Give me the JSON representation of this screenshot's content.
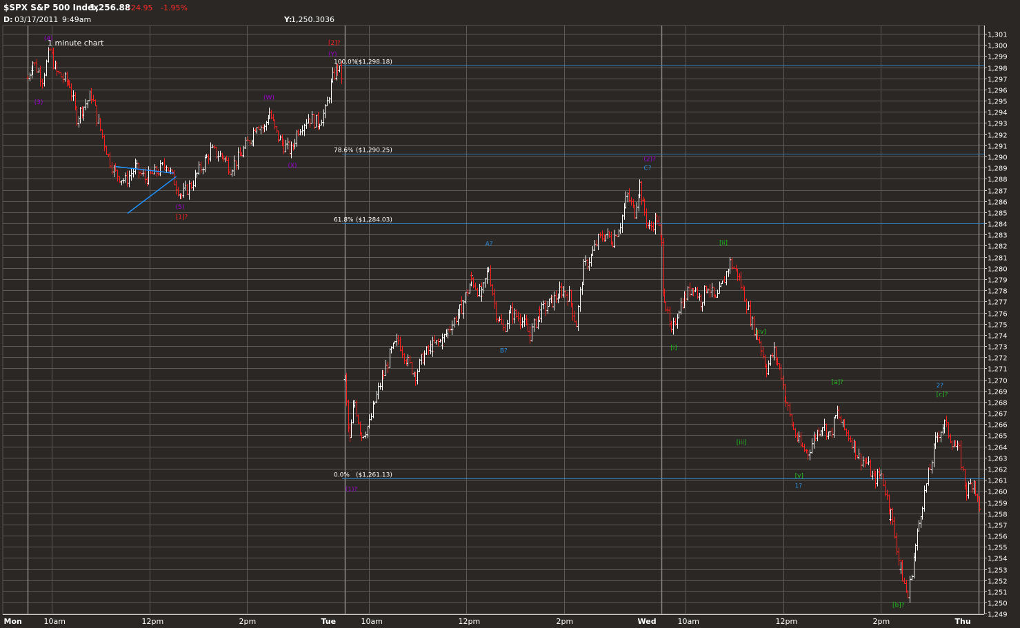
{
  "header": {
    "symbol": "$SPX S&P 500 Index",
    "last": "1,256.88",
    "change": "-24.95",
    "change_pct": "-1.95%",
    "date_label": "D:",
    "date_value": "03/17/2011",
    "time_value": "9:49am",
    "y_label": "Y:",
    "y_value": "1,250.3036"
  },
  "colors": {
    "background": "#2a2724",
    "plot_background": "#2a2724",
    "grid": "#5e5a56",
    "up_bar": "#ffffff",
    "down_bar": "#ff2020",
    "fib_line": "#2f7fbf",
    "trendline": "#1e90ff",
    "wave_purple": "#a000d8",
    "wave_red": "#ff2020",
    "wave_green": "#20c020",
    "wave_blue": "#2f8fe0"
  },
  "chart_data": {
    "type": "ohlc",
    "title": "$SPX S&P 500 Index",
    "note": "1 minute chart",
    "ylim": [
      1249,
      1301
    ],
    "y_ticks": [
      "1,301",
      "1,300",
      "1,299",
      "1,298",
      "1,297",
      "1,296",
      "1,295",
      "1,294",
      "1,293",
      "1,292",
      "1,291",
      "1,290",
      "1,289",
      "1,288",
      "1,287",
      "1,286",
      "1,285",
      "1,284",
      "1,283",
      "1,282",
      "1,281",
      "1,280",
      "1,279",
      "1,278",
      "1,277",
      "1,276",
      "1,275",
      "1,274",
      "1,273",
      "1,272",
      "1,271",
      "1,270",
      "1,269",
      "1,268",
      "1,267",
      "1,266",
      "1,265",
      "1,264",
      "1,263",
      "1,262",
      "1,261",
      "1,260",
      "1,259",
      "1,258",
      "1,257",
      "1,256",
      "1,255",
      "1,254",
      "1,253",
      "1,252",
      "1,251",
      "1,250",
      "1,249"
    ],
    "x_ticks": [
      {
        "label": "Mon",
        "t": 0,
        "bold": true
      },
      {
        "label": "10am",
        "t": 0.5
      },
      {
        "label": "12pm",
        "t": 2.5
      },
      {
        "label": "2pm",
        "t": 4.5
      },
      {
        "label": "Tue",
        "t": 6.5,
        "bold": true
      },
      {
        "label": "10am",
        "t": 7
      },
      {
        "label": "12pm",
        "t": 9
      },
      {
        "label": "2pm",
        "t": 11
      },
      {
        "label": "Wed",
        "t": 13,
        "bold": true
      },
      {
        "label": "10am",
        "t": 13.5
      },
      {
        "label": "12pm",
        "t": 15.5
      },
      {
        "label": "2pm",
        "t": 17.5
      },
      {
        "label": "Thu",
        "t": 19.5,
        "bold": true
      }
    ],
    "day_dividers": [
      6.5,
      13
    ],
    "fib_levels": [
      {
        "label": "100.0%",
        "price_label": "($1,298.18)",
        "value": 1298.18
      },
      {
        "label": "78.6%",
        "price_label": "($1,290.25)",
        "value": 1290.25
      },
      {
        "label": "61.8%",
        "price_label": "($1,284.03)",
        "value": 1284.03
      },
      {
        "label": "0.0%",
        "price_label": "($1,261.13)",
        "value": 1261.13
      }
    ],
    "close_path": [
      [
        0.0,
        1297.0
      ],
      [
        0.1,
        1298.5
      ],
      [
        0.3,
        1297.0
      ],
      [
        0.45,
        1299.5
      ],
      [
        0.6,
        1297.5
      ],
      [
        0.85,
        1296.5
      ],
      [
        1.0,
        1293.5
      ],
      [
        1.15,
        1294.5
      ],
      [
        1.3,
        1295.5
      ],
      [
        1.45,
        1293.0
      ],
      [
        1.65,
        1290.0
      ],
      [
        1.8,
        1288.5
      ],
      [
        2.0,
        1287.8
      ],
      [
        2.2,
        1289.0
      ],
      [
        2.4,
        1288.0
      ],
      [
        2.6,
        1288.5
      ],
      [
        2.85,
        1289.3
      ],
      [
        3.0,
        1287.8
      ],
      [
        3.15,
        1286.5
      ],
      [
        3.35,
        1287.5
      ],
      [
        3.55,
        1289.0
      ],
      [
        3.75,
        1290.5
      ],
      [
        4.0,
        1290.0
      ],
      [
        4.15,
        1289.0
      ],
      [
        4.35,
        1290.0
      ],
      [
        4.55,
        1291.5
      ],
      [
        4.7,
        1293.0
      ],
      [
        4.85,
        1292.5
      ],
      [
        4.95,
        1294.0
      ],
      [
        5.1,
        1292.0
      ],
      [
        5.25,
        1291.0
      ],
      [
        5.4,
        1290.5
      ],
      [
        5.55,
        1292.5
      ],
      [
        5.75,
        1293.5
      ],
      [
        5.95,
        1293.0
      ],
      [
        6.1,
        1294.0
      ],
      [
        6.25,
        1297.0
      ],
      [
        6.35,
        1298.0
      ],
      [
        6.45,
        1297.0
      ],
      [
        6.5,
        1270.0
      ],
      [
        6.6,
        1264.5
      ],
      [
        6.7,
        1268.0
      ],
      [
        6.85,
        1265.0
      ],
      [
        7.0,
        1266.0
      ],
      [
        7.15,
        1268.5
      ],
      [
        7.3,
        1270.5
      ],
      [
        7.45,
        1272.5
      ],
      [
        7.6,
        1273.5
      ],
      [
        7.8,
        1271.5
      ],
      [
        7.95,
        1270.5
      ],
      [
        8.1,
        1272.0
      ],
      [
        8.3,
        1273.0
      ],
      [
        8.5,
        1273.5
      ],
      [
        8.7,
        1275.0
      ],
      [
        8.9,
        1276.5
      ],
      [
        9.1,
        1279.0
      ],
      [
        9.3,
        1277.5
      ],
      [
        9.45,
        1280.0
      ],
      [
        9.6,
        1276.0
      ],
      [
        9.75,
        1274.5
      ],
      [
        9.9,
        1276.0
      ],
      [
        10.1,
        1275.5
      ],
      [
        10.3,
        1274.0
      ],
      [
        10.5,
        1276.0
      ],
      [
        10.75,
        1277.0
      ],
      [
        10.95,
        1278.0
      ],
      [
        11.1,
        1277.5
      ],
      [
        11.25,
        1275.0
      ],
      [
        11.4,
        1280.0
      ],
      [
        11.55,
        1281.0
      ],
      [
        11.7,
        1282.5
      ],
      [
        11.85,
        1283.0
      ],
      [
        12.0,
        1282.5
      ],
      [
        12.15,
        1284.0
      ],
      [
        12.3,
        1286.5
      ],
      [
        12.45,
        1285.0
      ],
      [
        12.55,
        1287.5
      ],
      [
        12.65,
        1285.0
      ],
      [
        12.75,
        1283.5
      ],
      [
        12.9,
        1284.5
      ],
      [
        13.0,
        1282.0
      ],
      [
        13.05,
        1277.5
      ],
      [
        13.2,
        1274.0
      ],
      [
        13.35,
        1276.5
      ],
      [
        13.5,
        1277.5
      ],
      [
        13.65,
        1278.5
      ],
      [
        13.8,
        1277.0
      ],
      [
        13.95,
        1278.5
      ],
      [
        14.1,
        1277.0
      ],
      [
        14.25,
        1278.5
      ],
      [
        14.4,
        1280.5
      ],
      [
        14.55,
        1279.5
      ],
      [
        14.7,
        1277.5
      ],
      [
        14.85,
        1275.0
      ],
      [
        15.0,
        1273.5
      ],
      [
        15.15,
        1271.0
      ],
      [
        15.3,
        1272.5
      ],
      [
        15.45,
        1270.5
      ],
      [
        15.55,
        1268.0
      ],
      [
        15.7,
        1265.5
      ],
      [
        15.85,
        1264.0
      ],
      [
        16.0,
        1263.5
      ],
      [
        16.15,
        1265.0
      ],
      [
        16.3,
        1266.0
      ],
      [
        16.45,
        1265.0
      ],
      [
        16.6,
        1267.0
      ],
      [
        16.75,
        1265.5
      ],
      [
        16.9,
        1264.5
      ],
      [
        17.05,
        1263.0
      ],
      [
        17.2,
        1262.5
      ],
      [
        17.35,
        1261.0
      ],
      [
        17.5,
        1261.5
      ],
      [
        17.7,
        1258.0
      ],
      [
        17.9,
        1253.0
      ],
      [
        18.05,
        1250.5
      ],
      [
        18.2,
        1255.0
      ],
      [
        18.35,
        1259.0
      ],
      [
        18.5,
        1262.0
      ],
      [
        18.65,
        1265.0
      ],
      [
        18.8,
        1266.0
      ],
      [
        18.95,
        1264.5
      ],
      [
        19.1,
        1263.5
      ],
      [
        19.25,
        1260.0
      ],
      [
        19.4,
        1261.0
      ],
      [
        19.55,
        1257.5
      ]
    ],
    "annotations": [
      {
        "text": "(4)",
        "t": 0.45,
        "v": 1300.4,
        "color": "wave_purple"
      },
      {
        "text": "(3)",
        "t": 0.25,
        "v": 1294.7,
        "color": "wave_purple"
      },
      {
        "text": "(5)",
        "t": 3.15,
        "v": 1285.3,
        "color": "wave_purple"
      },
      {
        "text": "[1]?",
        "t": 3.15,
        "v": 1284.4,
        "color": "wave_red"
      },
      {
        "text": "(W)",
        "t": 4.95,
        "v": 1295.1,
        "color": "wave_purple"
      },
      {
        "text": "(X)",
        "t": 5.45,
        "v": 1289.0,
        "color": "wave_purple"
      },
      {
        "text": "[2]?",
        "t": 6.28,
        "v": 1300.0,
        "color": "wave_red"
      },
      {
        "text": "(Y)",
        "t": 6.28,
        "v": 1299.0,
        "color": "wave_purple"
      },
      {
        "text": "(1)?",
        "t": 6.63,
        "v": 1260.0,
        "color": "wave_purple"
      },
      {
        "text": "A?",
        "t": 9.5,
        "v": 1282.0,
        "color": "wave_blue"
      },
      {
        "text": "B?",
        "t": 9.8,
        "v": 1272.4,
        "color": "wave_blue"
      },
      {
        "text": "(2)?",
        "t": 12.75,
        "v": 1289.6,
        "color": "wave_purple"
      },
      {
        "text": "C?",
        "t": 12.75,
        "v": 1288.8,
        "color": "wave_blue"
      },
      {
        "text": "[ii]",
        "t": 14.3,
        "v": 1282.1,
        "color": "wave_green"
      },
      {
        "text": "[i]",
        "t": 13.3,
        "v": 1272.7,
        "color": "wave_green"
      },
      {
        "text": "[iv]",
        "t": 15.05,
        "v": 1274.1,
        "color": "wave_green"
      },
      {
        "text": "[iii]",
        "t": 14.65,
        "v": 1264.2,
        "color": "wave_green"
      },
      {
        "text": "[a]?",
        "t": 16.6,
        "v": 1269.6,
        "color": "wave_green"
      },
      {
        "text": "[v]",
        "t": 15.85,
        "v": 1261.2,
        "color": "wave_green"
      },
      {
        "text": "1?",
        "t": 15.85,
        "v": 1260.3,
        "color": "wave_blue"
      },
      {
        "text": "2?",
        "t": 18.75,
        "v": 1269.3,
        "color": "wave_blue"
      },
      {
        "text": "[c]?",
        "t": 18.75,
        "v": 1268.5,
        "color": "wave_green"
      },
      {
        "text": "[b]?",
        "t": 17.85,
        "v": 1249.6,
        "color": "wave_green"
      }
    ],
    "trendlines": [
      {
        "t1": 1.8,
        "v1": 1289.1,
        "t2": 3.0,
        "v2": 1288.5
      },
      {
        "t1": 2.05,
        "v1": 1284.9,
        "t2": 3.05,
        "v2": 1288.2
      }
    ]
  }
}
